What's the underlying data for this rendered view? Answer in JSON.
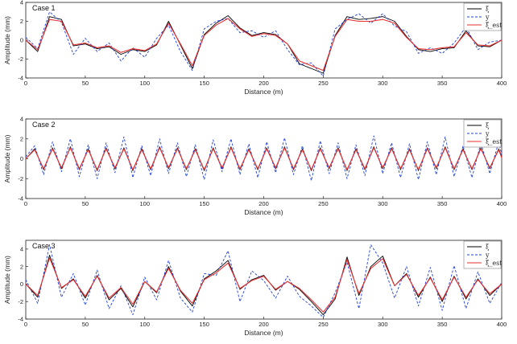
{
  "figure": {
    "background": "#ffffff"
  },
  "chart_data": [
    {
      "type": "line",
      "title": "Case 1",
      "xlabel": "Distance (m)",
      "ylabel": "Amplitude (mm)",
      "xlim": [
        0,
        400
      ],
      "ylim": [
        -4,
        4
      ],
      "xticks": [
        0,
        50,
        100,
        150,
        200,
        250,
        300,
        350,
        400
      ],
      "yticks": [
        -4,
        -2,
        0,
        2,
        4
      ],
      "legend_position": "top-right",
      "x": [
        0,
        10,
        20,
        30,
        40,
        50,
        60,
        70,
        80,
        90,
        100,
        110,
        120,
        130,
        140,
        150,
        160,
        170,
        180,
        190,
        200,
        210,
        220,
        230,
        240,
        250,
        260,
        270,
        280,
        290,
        300,
        310,
        320,
        330,
        340,
        350,
        360,
        370,
        380,
        390,
        400
      ],
      "series": [
        {
          "name": "ξ",
          "color": "#000000",
          "dash": "",
          "width": 0.9,
          "values": [
            0,
            -1.2,
            2.5,
            2.2,
            -0.6,
            -0.4,
            -0.9,
            -0.7,
            -1.5,
            -1.0,
            -1.2,
            -0.5,
            2.0,
            -0.5,
            -3.0,
            0.6,
            1.8,
            2.6,
            1.3,
            0.5,
            0.8,
            0.6,
            -0.4,
            -2.5,
            -3.0,
            -3.5,
            0.5,
            2.5,
            2.2,
            2.3,
            2.5,
            2.0,
            0.4,
            -1.0,
            -1.2,
            -0.9,
            -0.8,
            1.0,
            -0.6,
            -0.7,
            0.0
          ]
        },
        {
          "name": "y",
          "color": "#1f3fe0",
          "dash": "3,2",
          "width": 0.9,
          "values": [
            0.3,
            -0.9,
            3.0,
            1.9,
            -1.5,
            0.2,
            -1.2,
            -0.3,
            -2.2,
            -0.8,
            -1.8,
            0.2,
            1.6,
            -1.2,
            -3.2,
            1.2,
            2.0,
            2.3,
            0.8,
            1.0,
            0.3,
            1.0,
            -1.0,
            -2.6,
            -2.4,
            -3.8,
            1.2,
            2.2,
            2.8,
            1.8,
            2.8,
            1.5,
            0.9,
            -1.4,
            -0.8,
            -1.4,
            -0.3,
            1.4,
            -1.0,
            -0.2,
            0.0
          ]
        },
        {
          "name": "ξ̂_est",
          "color": "#e8312f",
          "dash": "",
          "width": 1.1,
          "values": [
            0,
            -1.0,
            2.2,
            2.0,
            -0.5,
            -0.3,
            -0.8,
            -0.6,
            -1.3,
            -0.9,
            -1.1,
            -0.4,
            1.8,
            -0.4,
            -2.7,
            0.5,
            1.6,
            2.3,
            1.2,
            0.4,
            0.7,
            0.5,
            -0.4,
            -2.2,
            -2.7,
            -3.2,
            0.4,
            2.2,
            2.0,
            2.0,
            2.2,
            1.8,
            0.3,
            -0.9,
            -1.0,
            -0.8,
            -0.7,
            0.8,
            -0.5,
            -0.6,
            0.0
          ]
        }
      ]
    },
    {
      "type": "line",
      "title": "Case 2",
      "xlabel": "Distance (m)",
      "ylabel": "Amplitude (mm)",
      "xlim": [
        0,
        400
      ],
      "ylim": [
        -4,
        4
      ],
      "xticks": [
        0,
        50,
        100,
        150,
        200,
        250,
        300,
        350,
        400
      ],
      "yticks": [
        -4,
        -2,
        0,
        2,
        4
      ],
      "legend_position": "top-right",
      "x": [
        0,
        7.5,
        15,
        22.5,
        30,
        37.5,
        45,
        52.5,
        60,
        67.5,
        75,
        82.5,
        90,
        97.5,
        105,
        112.5,
        120,
        127.5,
        135,
        142.5,
        150,
        157.5,
        165,
        172.5,
        180,
        187.5,
        195,
        202.5,
        210,
        217.5,
        225,
        232.5,
        240,
        247.5,
        255,
        262.5,
        270,
        277.5,
        285,
        292.5,
        300,
        307.5,
        315,
        322.5,
        330,
        337.5,
        345,
        352.5,
        360,
        367.5,
        375,
        382.5,
        390,
        397.5,
        400
      ],
      "series": [
        {
          "name": "ξ",
          "color": "#000000",
          "dash": "",
          "width": 0.9,
          "values": [
            0,
            1.0,
            -1.1,
            1.1,
            -1.0,
            1.2,
            -1.1,
            1.0,
            -1.2,
            1.1,
            -1.0,
            1.1,
            -1.2,
            1.0,
            -1.1,
            1.2,
            -1.0,
            1.1,
            -1.1,
            1.0,
            -1.2,
            1.1,
            -1.0,
            1.2,
            -1.1,
            1.0,
            -1.1,
            1.1,
            -1.0,
            1.2,
            -1.1,
            1.0,
            -1.2,
            1.1,
            -1.0,
            1.1,
            -1.2,
            1.0,
            -1.1,
            1.2,
            -1.0,
            1.1,
            -1.1,
            1.0,
            -1.2,
            1.1,
            -1.0,
            1.2,
            -1.1,
            1.0,
            -1.1,
            1.1,
            -1.0,
            1.0,
            0.2
          ]
        },
        {
          "name": "y",
          "color": "#1f3fe0",
          "dash": "3,2",
          "width": 0.9,
          "values": [
            0.2,
            1.3,
            -1.6,
            1.7,
            -1.3,
            2.0,
            -1.8,
            1.4,
            -2.0,
            1.6,
            -1.4,
            2.2,
            -1.9,
            1.3,
            -1.7,
            2.0,
            -1.5,
            1.6,
            -1.8,
            1.4,
            -2.1,
            1.9,
            -1.3,
            2.0,
            -1.6,
            1.5,
            -1.9,
            1.7,
            -1.4,
            2.1,
            -1.6,
            1.3,
            -2.2,
            1.8,
            -1.5,
            1.6,
            -2.0,
            1.4,
            -1.7,
            2.3,
            -1.5,
            1.6,
            -1.9,
            1.5,
            -2.1,
            1.7,
            -1.6,
            2.2,
            -1.8,
            1.3,
            -1.9,
            1.6,
            -1.5,
            1.7,
            0.4
          ]
        },
        {
          "name": "ξ̂_est",
          "color": "#e8312f",
          "dash": "",
          "width": 1.1,
          "values": [
            0,
            0.9,
            -1.0,
            1.0,
            -0.9,
            1.1,
            -1.0,
            0.9,
            -1.1,
            1.0,
            -0.9,
            1.0,
            -1.1,
            0.9,
            -1.0,
            1.1,
            -0.9,
            1.0,
            -1.0,
            0.9,
            -1.1,
            1.0,
            -0.9,
            1.1,
            -1.0,
            0.9,
            -1.0,
            1.0,
            -0.9,
            1.1,
            -1.0,
            0.9,
            -1.1,
            1.0,
            -0.9,
            1.0,
            -1.1,
            0.9,
            -1.0,
            1.1,
            -0.9,
            1.0,
            -1.0,
            0.9,
            -1.1,
            1.0,
            -0.9,
            1.1,
            -1.0,
            0.9,
            -1.0,
            1.0,
            -0.9,
            0.9,
            0.1
          ]
        }
      ]
    },
    {
      "type": "line",
      "title": "Case 3",
      "xlabel": "Distance (m)",
      "ylabel": "Amplitude (mm)",
      "xlim": [
        0,
        400
      ],
      "ylim": [
        -4,
        5
      ],
      "xticks": [
        0,
        50,
        100,
        150,
        200,
        250,
        300,
        350,
        400
      ],
      "yticks": [
        -4,
        -2,
        0,
        2,
        4
      ],
      "legend_position": "top-right",
      "x": [
        0,
        10,
        20,
        30,
        40,
        50,
        60,
        70,
        80,
        90,
        100,
        110,
        120,
        130,
        140,
        150,
        160,
        170,
        180,
        190,
        200,
        210,
        220,
        230,
        240,
        250,
        260,
        270,
        280,
        290,
        300,
        310,
        320,
        330,
        340,
        350,
        360,
        370,
        380,
        390,
        400
      ],
      "series": [
        {
          "name": "ξ",
          "color": "#000000",
          "dash": "",
          "width": 0.9,
          "values": [
            0,
            -1.5,
            3.3,
            -0.5,
            0.6,
            -1.6,
            1.0,
            -1.8,
            -0.5,
            -2.6,
            0.3,
            -1.0,
            2.0,
            -0.8,
            -2.5,
            0.6,
            1.5,
            2.7,
            -0.6,
            0.5,
            1.0,
            -0.7,
            0.3,
            -0.6,
            -2.0,
            -3.5,
            -1.7,
            3.1,
            -1.3,
            2.0,
            3.2,
            -0.2,
            1.2,
            -1.5,
            0.8,
            -2.0,
            0.9,
            -1.7,
            0.6,
            -1.3,
            0.0
          ]
        },
        {
          "name": "y",
          "color": "#1f3fe0",
          "dash": "3,2",
          "width": 0.9,
          "values": [
            0.5,
            -2.2,
            4.5,
            -1.5,
            1.2,
            -2.4,
            1.6,
            -2.8,
            -0.2,
            -3.5,
            0.8,
            -1.8,
            2.7,
            -1.6,
            -3.2,
            1.2,
            1.0,
            3.8,
            -2.0,
            1.5,
            0.4,
            -1.6,
            0.9,
            -1.4,
            -2.5,
            -3.8,
            -1.0,
            2.5,
            -2.8,
            4.5,
            2.4,
            -1.6,
            2.0,
            -2.5,
            1.9,
            -3.0,
            2.1,
            -2.8,
            1.4,
            -2.2,
            0.2
          ]
        },
        {
          "name": "ξ̂_est",
          "color": "#e8312f",
          "dash": "",
          "width": 1.1,
          "values": [
            0,
            -1.3,
            3.0,
            -0.4,
            0.5,
            -1.4,
            0.9,
            -1.6,
            -0.4,
            -2.3,
            0.3,
            -0.9,
            1.8,
            -0.7,
            -2.2,
            0.5,
            1.3,
            2.4,
            -0.5,
            0.4,
            0.9,
            -0.6,
            0.3,
            -0.5,
            -1.8,
            -3.2,
            -1.5,
            2.8,
            -1.1,
            1.8,
            2.9,
            -0.2,
            1.1,
            -1.3,
            0.7,
            -1.8,
            0.8,
            -1.5,
            0.5,
            -1.1,
            0.0
          ]
        }
      ]
    }
  ]
}
